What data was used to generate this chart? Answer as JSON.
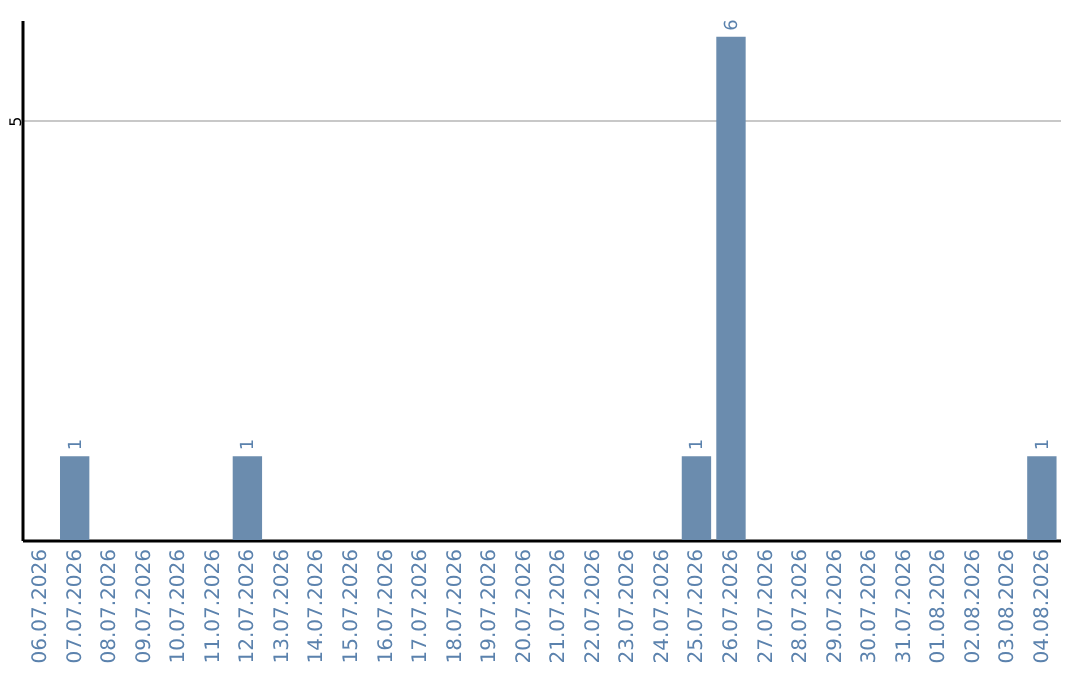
{
  "chart_data": {
    "type": "bar",
    "categories": [
      "06.07.2026",
      "07.07.2026",
      "08.07.2026",
      "09.07.2026",
      "10.07.2026",
      "11.07.2026",
      "12.07.2026",
      "13.07.2026",
      "14.07.2026",
      "15.07.2026",
      "16.07.2026",
      "17.07.2026",
      "18.07.2026",
      "19.07.2026",
      "20.07.2026",
      "21.07.2026",
      "22.07.2026",
      "23.07.2026",
      "24.07.2026",
      "25.07.2026",
      "26.07.2026",
      "27.07.2026",
      "28.07.2026",
      "29.07.2026",
      "30.07.2026",
      "31.07.2026",
      "01.08.2026",
      "02.08.2026",
      "03.08.2026",
      "04.08.2026"
    ],
    "values": [
      0,
      1,
      0,
      0,
      0,
      0,
      1,
      0,
      0,
      0,
      0,
      0,
      0,
      0,
      0,
      0,
      0,
      0,
      0,
      1,
      6,
      0,
      0,
      0,
      0,
      0,
      0,
      0,
      0,
      1
    ],
    "value_labels": [
      null,
      "1",
      null,
      null,
      null,
      null,
      "1",
      null,
      null,
      null,
      null,
      null,
      null,
      null,
      null,
      null,
      null,
      null,
      null,
      "1",
      "6",
      null,
      null,
      null,
      null,
      null,
      null,
      null,
      null,
      "1"
    ],
    "color": "#6b8cae",
    "ylim": [
      0,
      6.2
    ],
    "yticks": [
      5
    ],
    "grid": "y"
  }
}
